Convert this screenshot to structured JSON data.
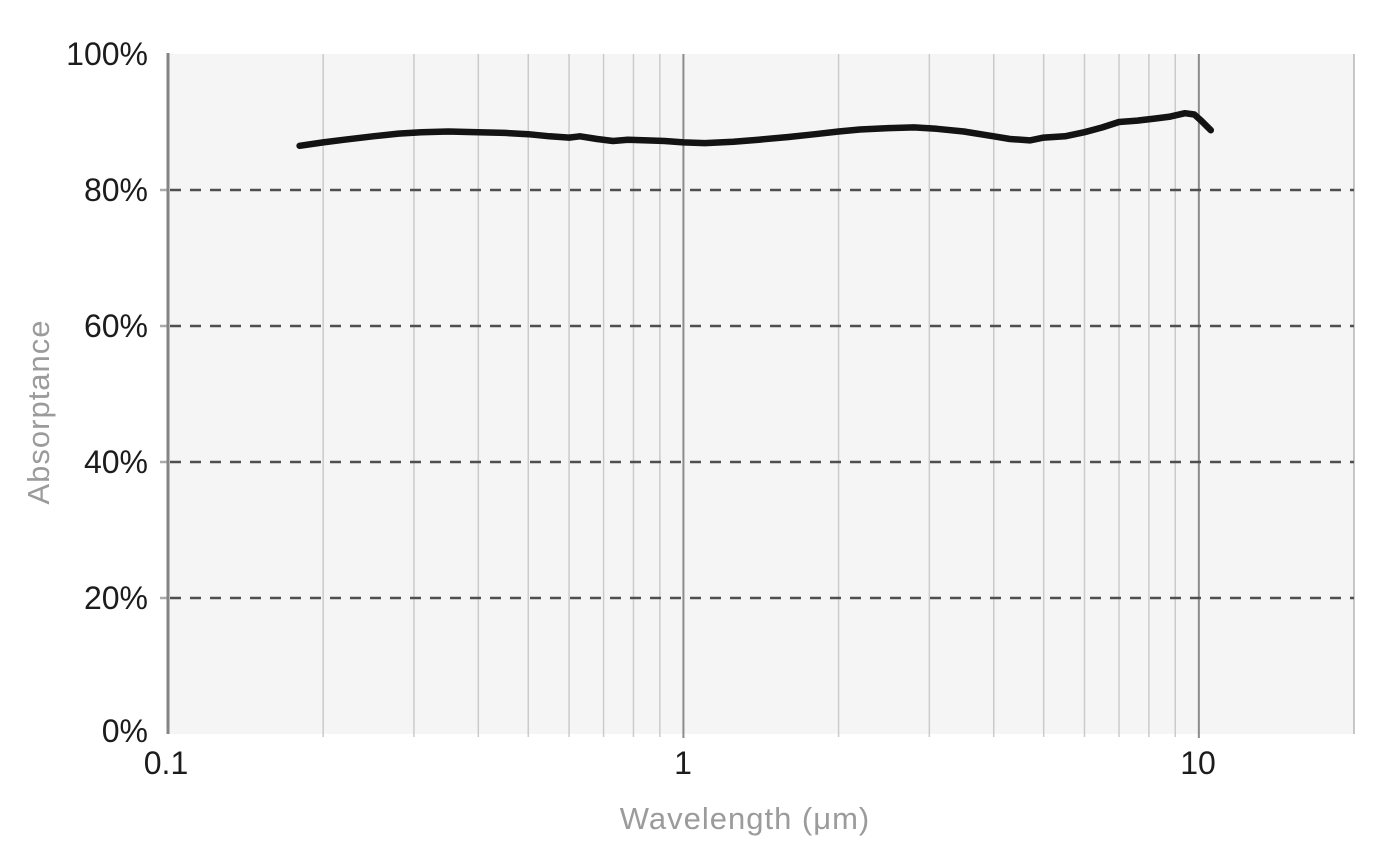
{
  "chart_data": {
    "type": "line",
    "title": "",
    "xlabel": "Wavelength (μm)",
    "ylabel": "Absorptance",
    "x_scale": "log",
    "x_range": [
      0.1,
      20
    ],
    "y_range": [
      0,
      100
    ],
    "grid": true,
    "legend": "none",
    "x_ticks": [
      {
        "value": 0.1,
        "label": "0.1"
      },
      {
        "value": 1,
        "label": "1"
      },
      {
        "value": 10,
        "label": "10"
      }
    ],
    "x_minor_gridlines": [
      0.2,
      0.3,
      0.4,
      0.5,
      0.6,
      0.7,
      0.8,
      0.9,
      2,
      3,
      4,
      5,
      6,
      7,
      8,
      9
    ],
    "x_major_gridlines": [
      1,
      10
    ],
    "y_ticks": [
      {
        "value": 100,
        "label": "100%"
      },
      {
        "value": 80,
        "label": "80%"
      },
      {
        "value": 60,
        "label": "60%"
      },
      {
        "value": 40,
        "label": "40%"
      },
      {
        "value": 20,
        "label": "20%"
      },
      {
        "value": 0,
        "label": "0%"
      }
    ],
    "y_dashed_gridlines": [
      20,
      40,
      60,
      80
    ],
    "series": [
      {
        "name": "absorptance",
        "color": "#131313",
        "points": [
          [
            0.18,
            86.5
          ],
          [
            0.2,
            87.0
          ],
          [
            0.22,
            87.4
          ],
          [
            0.25,
            87.9
          ],
          [
            0.28,
            88.3
          ],
          [
            0.31,
            88.5
          ],
          [
            0.35,
            88.6
          ],
          [
            0.4,
            88.5
          ],
          [
            0.45,
            88.4
          ],
          [
            0.5,
            88.2
          ],
          [
            0.55,
            87.9
          ],
          [
            0.6,
            87.7
          ],
          [
            0.63,
            87.9
          ],
          [
            0.68,
            87.5
          ],
          [
            0.73,
            87.2
          ],
          [
            0.78,
            87.4
          ],
          [
            0.85,
            87.3
          ],
          [
            0.92,
            87.2
          ],
          [
            1.0,
            87.0
          ],
          [
            1.1,
            86.9
          ],
          [
            1.25,
            87.1
          ],
          [
            1.4,
            87.4
          ],
          [
            1.6,
            87.8
          ],
          [
            1.8,
            88.2
          ],
          [
            2.0,
            88.6
          ],
          [
            2.2,
            88.9
          ],
          [
            2.5,
            89.1
          ],
          [
            2.8,
            89.2
          ],
          [
            3.1,
            89.0
          ],
          [
            3.5,
            88.6
          ],
          [
            4.0,
            87.9
          ],
          [
            4.3,
            87.5
          ],
          [
            4.7,
            87.3
          ],
          [
            5.0,
            87.7
          ],
          [
            5.5,
            87.9
          ],
          [
            6.0,
            88.5
          ],
          [
            6.5,
            89.2
          ],
          [
            7.0,
            90.0
          ],
          [
            7.6,
            90.2
          ],
          [
            8.2,
            90.5
          ],
          [
            8.8,
            90.8
          ],
          [
            9.4,
            91.3
          ],
          [
            9.8,
            91.1
          ],
          [
            10.1,
            90.2
          ],
          [
            10.55,
            88.8
          ]
        ]
      }
    ]
  },
  "colors": {
    "plot_background": "#f5f5f5",
    "minor_gridline": "#cbcbcb",
    "major_gridline": "#8c8c8c",
    "right_edge": "#b5b5b5",
    "dashed_gridline": "#4f4f4f",
    "axis_line": "#848484",
    "tick_mark": "#aaaaaa",
    "tick_label": "#1c1c1c",
    "axis_title": "#9b9b9b",
    "line": "#131313"
  }
}
